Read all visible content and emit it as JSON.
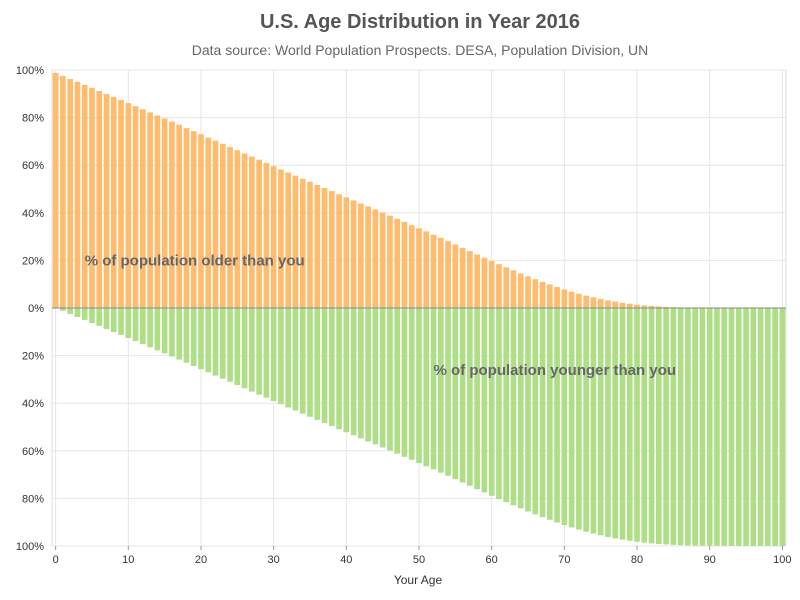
{
  "chart_data": {
    "type": "bar",
    "title": "U.S. Age Distribution in Year 2016",
    "subtitle": "Data source: World Population Prospects. DESA, Population Division, UN",
    "xlabel": "Your Age",
    "ylabel": "",
    "xlim": [
      0,
      100
    ],
    "ylim": [
      -100,
      100
    ],
    "x_ticks": [
      0,
      10,
      20,
      30,
      40,
      50,
      60,
      70,
      80,
      90,
      100
    ],
    "y_ticks": [
      {
        "value": 100,
        "label": "100%"
      },
      {
        "value": 80,
        "label": "80%"
      },
      {
        "value": 60,
        "label": "60%"
      },
      {
        "value": 40,
        "label": "40%"
      },
      {
        "value": 20,
        "label": "20%"
      },
      {
        "value": 0,
        "label": "0%"
      },
      {
        "value": -20,
        "label": "20%"
      },
      {
        "value": -40,
        "label": "40%"
      },
      {
        "value": -60,
        "label": "60%"
      },
      {
        "value": -80,
        "label": "80%"
      },
      {
        "value": -100,
        "label": "100%"
      }
    ],
    "grid": true,
    "annotations": [
      {
        "text": "% of population older than you",
        "x": 4,
        "y": 20
      },
      {
        "text": "% of population younger than you",
        "x": 52,
        "y": -26
      }
    ],
    "x": [
      0,
      1,
      2,
      3,
      4,
      5,
      6,
      7,
      8,
      9,
      10,
      11,
      12,
      13,
      14,
      15,
      16,
      17,
      18,
      19,
      20,
      21,
      22,
      23,
      24,
      25,
      26,
      27,
      28,
      29,
      30,
      31,
      32,
      33,
      34,
      35,
      36,
      37,
      38,
      39,
      40,
      41,
      42,
      43,
      44,
      45,
      46,
      47,
      48,
      49,
      50,
      51,
      52,
      53,
      54,
      55,
      56,
      57,
      58,
      59,
      60,
      61,
      62,
      63,
      64,
      65,
      66,
      67,
      68,
      69,
      70,
      71,
      72,
      73,
      74,
      75,
      76,
      77,
      78,
      79,
      80,
      81,
      82,
      83,
      84,
      85,
      86,
      87,
      88,
      89,
      90,
      91,
      92,
      93,
      94,
      95,
      96,
      97,
      98,
      99,
      100
    ],
    "series": [
      {
        "name": "% of population older than you",
        "color": "#ffbb6e",
        "values": [
          98.8,
          97.5,
          96.2,
          95.0,
          93.7,
          92.5,
          91.2,
          89.9,
          88.7,
          87.4,
          86.1,
          84.8,
          83.5,
          82.2,
          80.9,
          79.6,
          78.3,
          77.0,
          75.6,
          74.3,
          73.0,
          71.6,
          70.3,
          69.0,
          67.6,
          66.3,
          64.9,
          63.6,
          62.3,
          60.9,
          59.6,
          58.2,
          56.9,
          55.6,
          54.3,
          53.0,
          51.7,
          50.4,
          49.1,
          47.8,
          46.5,
          45.2,
          43.9,
          42.7,
          41.4,
          40.1,
          38.8,
          37.5,
          36.2,
          34.8,
          33.5,
          32.2,
          30.8,
          29.5,
          28.1,
          26.7,
          25.3,
          23.9,
          22.5,
          21.1,
          19.7,
          18.4,
          17.1,
          15.8,
          14.5,
          13.3,
          12.1,
          11.0,
          9.9,
          8.8,
          7.8,
          6.9,
          6.0,
          5.2,
          4.5,
          3.8,
          3.2,
          2.7,
          2.2,
          1.8,
          1.4,
          1.1,
          0.85,
          0.65,
          0.48,
          0.35,
          0.25,
          0.17,
          0.12,
          0.08,
          0.05,
          0.03,
          0.02,
          0.01,
          0.01,
          0,
          0,
          0,
          0,
          0,
          0
        ]
      },
      {
        "name": "% of population younger than you",
        "color": "#aedf86",
        "values": [
          0,
          1.2,
          2.5,
          3.8,
          5.0,
          6.3,
          7.5,
          8.8,
          10.1,
          11.3,
          12.6,
          13.9,
          15.2,
          16.5,
          17.8,
          19.1,
          20.4,
          21.7,
          23.0,
          24.4,
          25.7,
          27.0,
          28.4,
          29.7,
          31.0,
          32.4,
          33.7,
          35.1,
          36.4,
          37.7,
          39.1,
          40.4,
          41.8,
          43.1,
          44.4,
          45.7,
          47.0,
          48.3,
          49.6,
          50.9,
          52.2,
          53.5,
          54.8,
          56.1,
          57.3,
          58.6,
          59.9,
          61.2,
          62.5,
          63.8,
          65.2,
          66.5,
          67.8,
          69.2,
          70.5,
          71.9,
          73.3,
          74.7,
          76.1,
          77.5,
          78.9,
          80.3,
          81.6,
          82.9,
          84.2,
          85.5,
          86.7,
          87.9,
          89.0,
          90.1,
          91.2,
          92.2,
          93.1,
          94.0,
          94.8,
          95.5,
          96.2,
          96.8,
          97.3,
          97.8,
          98.2,
          98.6,
          98.9,
          99.15,
          99.35,
          99.52,
          99.65,
          99.75,
          99.83,
          99.88,
          99.92,
          99.95,
          99.97,
          99.98,
          99.99,
          100,
          100,
          100,
          100,
          100,
          100
        ]
      }
    ]
  }
}
